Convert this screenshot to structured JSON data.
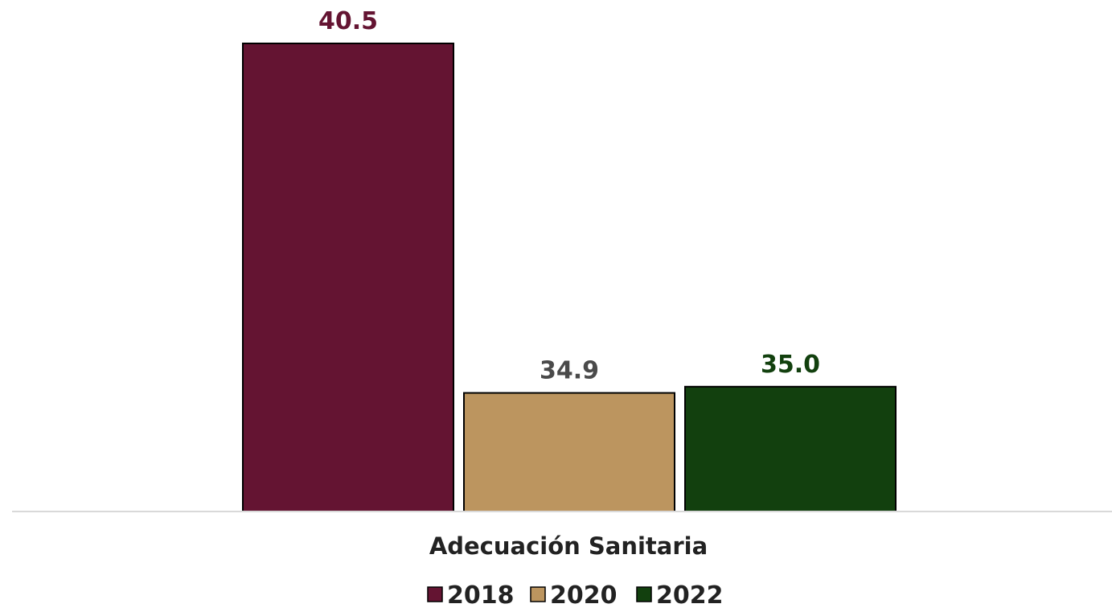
{
  "chart_data": {
    "type": "bar",
    "categories": [
      "Adecuación Sanitaria"
    ],
    "series": [
      {
        "name": "2018",
        "values": [
          40.5
        ],
        "color": "#641432",
        "label_color": "#641432"
      },
      {
        "name": "2020",
        "values": [
          34.9
        ],
        "color": "#BC955F",
        "label_color": "#4A4A4A"
      },
      {
        "name": "2022",
        "values": [
          35.0
        ],
        "color": "#12400E",
        "label_color": "#12400E"
      }
    ],
    "data_labels": [
      "40.5",
      "34.9",
      "35.0"
    ],
    "title": "",
    "xlabel": "",
    "ylabel": "",
    "ylim": [
      0,
      41.5
    ],
    "grid": false,
    "legend_position": "bottom",
    "axis_color": "#D9D9D9",
    "bar_border_color": "#000000"
  }
}
